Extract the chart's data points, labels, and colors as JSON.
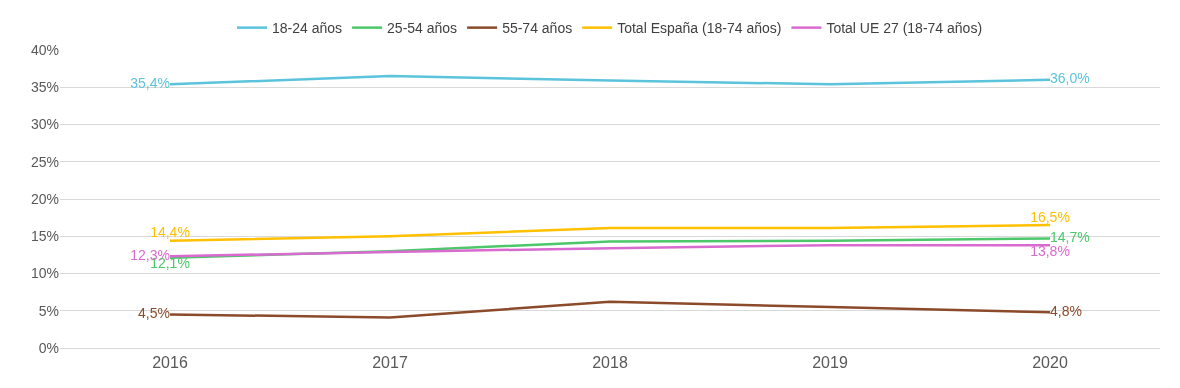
{
  "chart_data": {
    "type": "line",
    "categories": [
      "2016",
      "2017",
      "2018",
      "2019",
      "2020"
    ],
    "series": [
      {
        "name": "18-24 años",
        "color": "#5bc3dc",
        "values": [
          35.4,
          36.5,
          35.9,
          35.4,
          36.0
        ],
        "value_labels": [
          "35,4%",
          null,
          null,
          null,
          "36,0%"
        ]
      },
      {
        "name": "25-54 años",
        "color": "#4cc76a",
        "values": [
          12.1,
          13.0,
          14.3,
          14.4,
          14.7
        ],
        "value_labels": [
          "12,1%",
          null,
          null,
          null,
          "14,7%"
        ]
      },
      {
        "name": "55-74 años",
        "color": "#8b4a2a",
        "values": [
          4.5,
          4.1,
          6.2,
          5.5,
          4.8
        ],
        "value_labels": [
          "4,5%",
          null,
          null,
          null,
          "4,8%"
        ]
      },
      {
        "name": "Total España (18-74 años)",
        "color": "#ffc000",
        "values": [
          14.4,
          15.0,
          16.1,
          16.1,
          16.5
        ],
        "value_labels": [
          "14,4%",
          null,
          null,
          null,
          "16,5%"
        ]
      },
      {
        "name": "Total UE 27 (18-74 años)",
        "color": "#d96bd0",
        "values": [
          12.3,
          12.9,
          13.4,
          13.8,
          13.8
        ],
        "value_labels": [
          "12,3%",
          null,
          null,
          null,
          "13,8%"
        ]
      }
    ],
    "ylim": [
      0,
      40
    ],
    "yticks": [
      {
        "value": 0,
        "label": "0%"
      },
      {
        "value": 5,
        "label": "5%"
      },
      {
        "value": 10,
        "label": "10%"
      },
      {
        "value": 15,
        "label": "15%"
      },
      {
        "value": 20,
        "label": "20%"
      },
      {
        "value": 25,
        "label": "25%"
      },
      {
        "value": 30,
        "label": "30%"
      },
      {
        "value": 35,
        "label": "35%"
      },
      {
        "value": 40,
        "label": "40%"
      }
    ],
    "grid": "y",
    "legend": "top",
    "marker": "none",
    "line_style": "solid"
  }
}
